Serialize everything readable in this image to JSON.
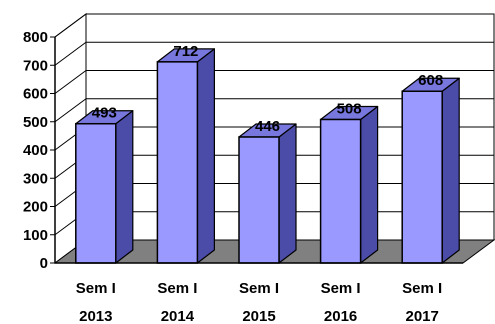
{
  "chart_data": {
    "type": "bar",
    "categories": [
      "Sem I 2013",
      "Sem I 2014",
      "Sem I 2015",
      "Sem I 2016",
      "Sem I 2017"
    ],
    "category_lines": [
      [
        "Sem I",
        "2013"
      ],
      [
        "Sem I",
        "2014"
      ],
      [
        "Sem I",
        "2015"
      ],
      [
        "Sem I",
        "2016"
      ],
      [
        "Sem I",
        "2017"
      ]
    ],
    "values": [
      493,
      712,
      446,
      508,
      608
    ],
    "data_labels": [
      "493",
      "712",
      "446",
      "508",
      "608"
    ],
    "y_ticks": [
      "0",
      "100",
      "200",
      "300",
      "400",
      "500",
      "600",
      "700",
      "800"
    ],
    "ylim": [
      0,
      800
    ],
    "grid": true,
    "style": "3d",
    "title": "",
    "xlabel": "",
    "ylabel": "",
    "colors": {
      "bar_front": "#9999ff",
      "bar_side": "#4b4ba8",
      "bar_top": "#7777dd",
      "floor": "#808080",
      "wall": "#ffffff",
      "grid": "#000000"
    }
  }
}
